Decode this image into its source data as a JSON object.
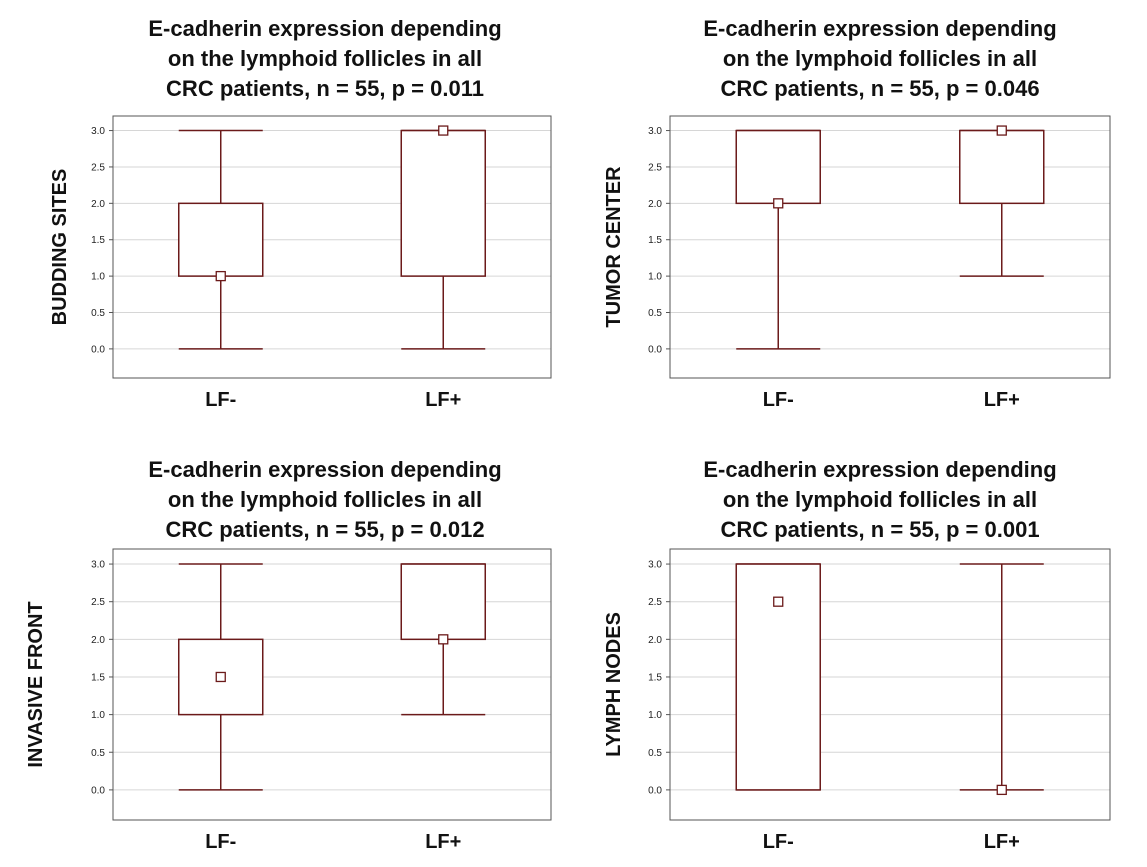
{
  "chart_data": [
    {
      "type": "boxplot",
      "title_lines": [
        "E-cadherin expression depending",
        "on the lymphoid follicles in all",
        "CRC patients, n = 55, p = 0.011"
      ],
      "ylabel": "BUDDING SITES",
      "categories": [
        "LF-",
        "LF+"
      ],
      "ylim": [
        -0.4,
        3.2
      ],
      "yticks": [
        "0.0",
        "0.5",
        "1.0",
        "1.5",
        "2.0",
        "2.5",
        "3.0"
      ],
      "grid": true,
      "boxes": [
        {
          "category": "LF-",
          "min": 0,
          "q1": 1,
          "median": 1,
          "q3": 2,
          "max": 3
        },
        {
          "category": "LF+",
          "min": 0,
          "q1": 1,
          "median": 3,
          "q3": 3,
          "max": 3
        }
      ]
    },
    {
      "type": "boxplot",
      "title_lines": [
        "E-cadherin expression depending",
        "on the lymphoid follicles in all",
        "CRC patients, n = 55, p = 0.046"
      ],
      "ylabel": "TUMOR CENTER",
      "categories": [
        "LF-",
        "LF+"
      ],
      "ylim": [
        -0.4,
        3.2
      ],
      "yticks": [
        "0.0",
        "0.5",
        "1.0",
        "1.5",
        "2.0",
        "2.5",
        "3.0"
      ],
      "grid": true,
      "boxes": [
        {
          "category": "LF-",
          "min": 0,
          "q1": 2,
          "median": 2,
          "q3": 3,
          "max": 3
        },
        {
          "category": "LF+",
          "min": 1,
          "q1": 2,
          "median": 3,
          "q3": 3,
          "max": 3
        }
      ]
    },
    {
      "type": "boxplot",
      "title_lines": [
        "E-cadherin expression depending",
        "on the lymphoid follicles in all",
        "CRC patients, n = 55, p = 0.012"
      ],
      "ylabel": "INVASIVE FRONT",
      "categories": [
        "LF-",
        "LF+"
      ],
      "ylim": [
        -0.4,
        3.2
      ],
      "yticks": [
        "0.0",
        "0.5",
        "1.0",
        "1.5",
        "2.0",
        "2.5",
        "3.0"
      ],
      "grid": true,
      "boxes": [
        {
          "category": "LF-",
          "min": 0,
          "q1": 1,
          "median": 1.5,
          "q3": 2,
          "max": 3
        },
        {
          "category": "LF+",
          "min": 1,
          "q1": 2,
          "median": 2,
          "q3": 3,
          "max": 3
        }
      ]
    },
    {
      "type": "boxplot",
      "title_lines": [
        "E-cadherin expression depending",
        "on the lymphoid follicles in all",
        "CRC patients, n = 55, p = 0.001"
      ],
      "ylabel": "LYMPH NODES",
      "categories": [
        "LF-",
        "LF+"
      ],
      "ylim": [
        -0.4,
        3.2
      ],
      "yticks": [
        "0.0",
        "0.5",
        "1.0",
        "1.5",
        "2.0",
        "2.5",
        "3.0"
      ],
      "grid": true,
      "boxes": [
        {
          "category": "LF-",
          "min": 0,
          "q1": 0,
          "median": 2.5,
          "q3": 3,
          "max": 3
        },
        {
          "category": "LF+",
          "min": 0,
          "q1": 0,
          "median": 0,
          "q3": 0,
          "max": 3
        }
      ]
    }
  ],
  "colors": {
    "box": "#6b1a1a",
    "axis": "#555555",
    "grid": "#d6d6d6",
    "text": "#111111"
  }
}
